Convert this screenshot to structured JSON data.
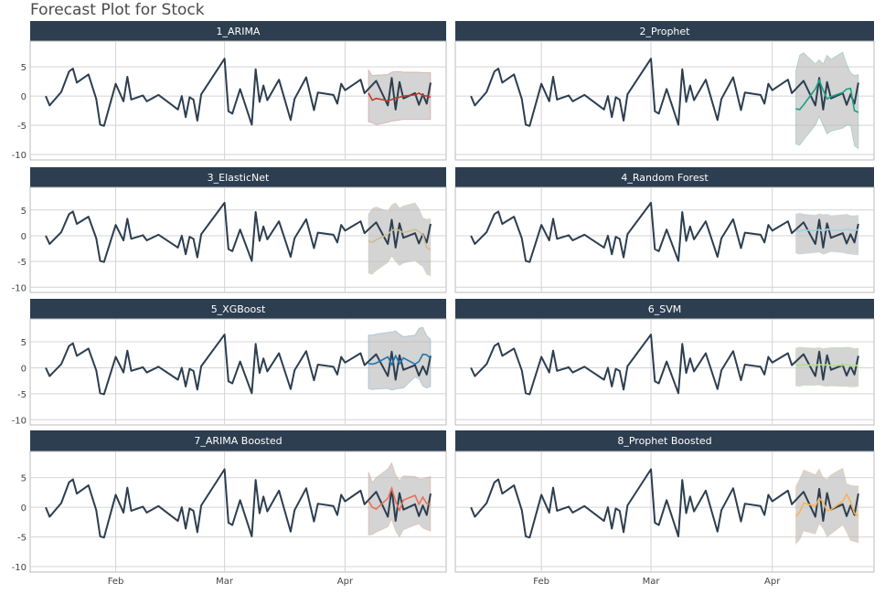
{
  "chart_data": {
    "type": "line",
    "title": "Forecast Plot for Stock",
    "layout": "facet grid, 4 rows x 2 columns",
    "ylim": [
      -10.3,
      9.4
    ],
    "y_ticks": [
      -10,
      -5,
      0,
      5
    ],
    "x_ticks": [
      "Feb",
      "Mar",
      "Apr"
    ],
    "x_range": [
      "Jan 10",
      "Apr 27"
    ],
    "grid": true,
    "actual_color": "#2c3e50",
    "ribbon_color": "#bdbdbd",
    "actual": {
      "x": [
        "Jan 14",
        "Jan 15",
        "Jan 18",
        "Jan 20",
        "Jan 21",
        "Jan 22",
        "Jan 25",
        "Jan 27",
        "Jan 28",
        "Jan 29",
        "Feb 1",
        "Feb 3",
        "Feb 4",
        "Feb 5",
        "Feb 8",
        "Feb 9",
        "Feb 12",
        "Feb 17",
        "Feb 18",
        "Feb 19",
        "Feb 20",
        "Feb 21",
        "Feb 22",
        "Feb 23",
        "Mar 1",
        "Mar 2",
        "Mar 3",
        "Mar 5",
        "Mar 8",
        "Mar 9",
        "Mar 10",
        "Mar 11",
        "Mar 12",
        "Mar 15",
        "Mar 18",
        "Mar 19",
        "Mar 22",
        "Mar 24",
        "Mar 25",
        "Mar 29",
        "Mar 30",
        "Mar 31",
        "Apr 1",
        "Apr 5",
        "Apr 6",
        "Apr 9",
        "Apr 12",
        "Apr 13",
        "Apr 14",
        "Apr 15",
        "Apr 16",
        "Apr 19",
        "Apr 20",
        "Apr 21",
        "Apr 22",
        "Apr 23"
      ],
      "y": [
        0,
        -1.6,
        0.7,
        4.2,
        4.7,
        2.3,
        3.7,
        -0.5,
        -4.9,
        -5.1,
        2.1,
        -0.9,
        3.3,
        -0.6,
        0.1,
        -0.9,
        0.2,
        -2.3,
        0,
        -3.6,
        -0.2,
        -0.6,
        -4.2,
        0.3,
        6.4,
        -2.6,
        -3.0,
        1.2,
        -4.9,
        4.6,
        -1.0,
        1.8,
        -0.7,
        2.8,
        -4.1,
        -0.5,
        3.2,
        -2.4,
        0.6,
        0.2,
        -1.3,
        2.1,
        1.0,
        2.8,
        0.5,
        2.6,
        -1.6,
        3.1,
        -2.3,
        2.4,
        -0.4,
        0.5,
        -1.5,
        0.3,
        -1.3,
        2.3
      ]
    },
    "forecast_x": [
      "Apr 7",
      "Apr 8",
      "Apr 9",
      "Apr 12",
      "Apr 13",
      "Apr 14",
      "Apr 15",
      "Apr 16",
      "Apr 19",
      "Apr 20",
      "Apr 21",
      "Apr 22",
      "Apr 23"
    ],
    "series": [
      {
        "name": "1_ARIMA",
        "color": "#c0392b",
        "values": [
          0.5,
          -0.7,
          -0.4,
          -0.8,
          -0.6,
          -0.3,
          -0.2,
          0,
          0.2,
          0.5,
          0.1,
          0,
          -0.2
        ],
        "lo": [
          -4.4,
          -4.6,
          -4.9,
          -4.5,
          -4.3,
          -4.2,
          -4.1,
          -4.0,
          -4.0,
          -4.0,
          -4.0,
          -4.0,
          -4.0
        ],
        "hi": [
          4.5,
          3.5,
          3.6,
          3.7,
          4.1,
          4.2,
          4.2,
          4.1,
          4.1,
          4.1,
          4.0,
          4.0,
          4.0
        ]
      },
      {
        "name": "2_Prophet",
        "color": "#18a185",
        "values": [
          -2.2,
          -2.3,
          -1.5,
          1.2,
          2.7,
          1.0,
          -0.5,
          -0.1,
          0.6,
          1.2,
          1.3,
          -2.5,
          -2.8
        ],
        "lo": [
          -8.2,
          -8.4,
          -7.5,
          -5.0,
          -3.5,
          -5.0,
          -6.5,
          -6.0,
          -5.5,
          -5.0,
          -5.0,
          -8.5,
          -9.0
        ],
        "hi": [
          4.3,
          7.0,
          7.4,
          5.5,
          6.2,
          5.5,
          7.0,
          6.3,
          7.5,
          5.5,
          4.0,
          3.5,
          3.7
        ]
      },
      {
        "name": "3_ElasticNet",
        "color": "#ccbe93",
        "values": [
          -1.0,
          -1.3,
          -0.8,
          0.3,
          1.0,
          1.3,
          1.0,
          0.6,
          1.2,
          0.8,
          0.2,
          -2.3,
          -2.7
        ],
        "lo": [
          -7.3,
          -7.5,
          -6.8,
          -5.2,
          -4.0,
          -5.0,
          -5.8,
          -5.3,
          -4.8,
          -5.5,
          -6.0,
          -7.5,
          -7.8
        ],
        "hi": [
          4.2,
          5.3,
          5.6,
          4.8,
          6.0,
          6.4,
          5.4,
          5.8,
          6.4,
          5.3,
          3.5,
          3.2,
          3.3
        ]
      },
      {
        "name": "4_Random Forest",
        "color": "#a6cee3",
        "values": [
          1.0,
          0.9,
          1.1,
          1.0,
          1.2,
          0.8,
          1.3,
          1.1,
          1.0,
          1.3,
          1.1,
          1.0,
          1.2
        ],
        "lo": [
          -3.4,
          -3.6,
          -3.5,
          -3.3,
          -3.2,
          -3.6,
          -3.4,
          -3.1,
          -3.3,
          -3.5,
          -3.6,
          -3.7,
          -3.7
        ],
        "hi": [
          4.2,
          4.4,
          4.2,
          4.0,
          4.3,
          4.1,
          4.2,
          3.9,
          4.1,
          4.2,
          3.9,
          3.9,
          4.0
        ]
      },
      {
        "name": "5_XGBoost",
        "color": "#1f78b4",
        "values": [
          0.8,
          0.7,
          0.9,
          2.1,
          0.6,
          2.3,
          0.8,
          1.9,
          0.7,
          1.2,
          2.6,
          2.5,
          1.8
        ],
        "lo": [
          -4.0,
          -4.2,
          -4.1,
          -4.0,
          -4.3,
          -4.1,
          -4.0,
          -3.9,
          -1.8,
          -2.1,
          -3.5,
          -3.9,
          -3.6
        ],
        "hi": [
          6.3,
          6.3,
          6.5,
          6.8,
          6.9,
          7.1,
          6.5,
          6.0,
          6.3,
          7.6,
          7.8,
          6.2,
          5.5
        ]
      },
      {
        "name": "6_SVM",
        "color": "#b2df8a",
        "values": [
          0.6,
          0.5,
          0.6,
          0.4,
          0.7,
          0.5,
          0.6,
          0.4,
          0.5,
          0.6,
          0.3,
          0.4,
          0.5
        ],
        "lo": [
          -3.5,
          -3.6,
          -3.4,
          -3.4,
          -3.3,
          -3.5,
          -3.6,
          -3.5,
          -3.6,
          -3.6,
          -3.7,
          -3.7,
          -3.6
        ],
        "hi": [
          3.8,
          4.0,
          3.9,
          3.8,
          3.9,
          3.7,
          3.8,
          3.9,
          3.9,
          4.0,
          3.9,
          3.7,
          3.8
        ]
      },
      {
        "name": "7_ARIMA Boosted",
        "color": "#e8735a",
        "values": [
          1.1,
          0.0,
          -0.3,
          1.5,
          3.2,
          1.0,
          -0.5,
          1.2,
          2.0,
          0.5,
          1.7,
          0.6,
          0.5
        ],
        "lo": [
          -4.7,
          -4.6,
          -4.2,
          -3.3,
          -2.0,
          -4.0,
          -5.0,
          -3.8,
          -3.0,
          -2.8,
          -3.5,
          -3.8,
          -4.0
        ],
        "hi": [
          6.0,
          4.2,
          5.0,
          6.5,
          7.5,
          5.5,
          4.5,
          5.3,
          5.2,
          4.8,
          4.8,
          5.0,
          5.2
        ]
      },
      {
        "name": "8_Prophet Boosted",
        "color": "#f5b35c",
        "values": [
          -1.6,
          -0.8,
          0.7,
          0.2,
          1.5,
          0.9,
          -0.6,
          -0.4,
          1.0,
          2.2,
          0.9,
          -1.0,
          -1.5
        ],
        "lo": [
          -6.2,
          -5.5,
          -4.0,
          -4.5,
          -2.8,
          -3.6,
          -5.0,
          -4.5,
          -3.0,
          -4.2,
          -5.6,
          -5.8,
          -6.0
        ],
        "hi": [
          3.5,
          4.8,
          6.3,
          5.5,
          6.5,
          5.0,
          4.7,
          5.5,
          6.6,
          4.0,
          3.7,
          3.6,
          3.6
        ]
      }
    ]
  }
}
